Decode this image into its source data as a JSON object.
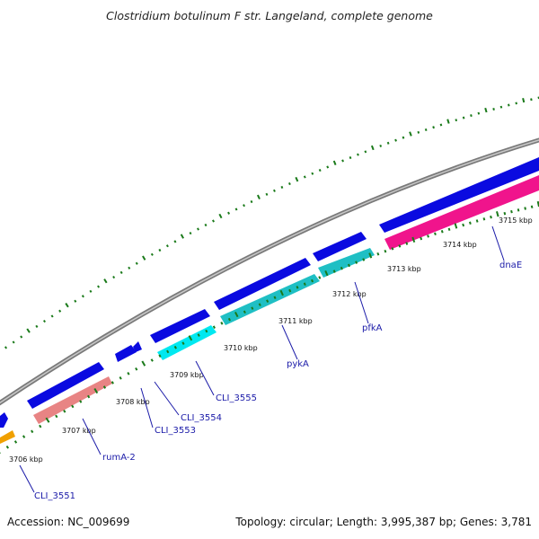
{
  "title": "Clostridium botulinum F str. Langeland, complete genome",
  "footer": {
    "accession": "Accession: NC_009699",
    "topology": "Topology: circular; Length: 3,995,387 bp; Genes: 3,781"
  },
  "colors": {
    "backbone": "#8c8c8c",
    "forward_gene": "#0a0ae0",
    "reverse_gene_cyan": "#1fbfc4",
    "reverse_gene_bright_cyan": "#00e8f0",
    "reverse_gene_pink": "#f0148c",
    "reverse_gene_salmon": "#e88484",
    "reverse_gene_orange": "#f0a000",
    "tick": "#1a7a1a",
    "label_line": "#1a1aa8"
  },
  "ticks": [
    "3706 kbp",
    "3707 kbp",
    "3708 kbp",
    "3709 kbp",
    "3710 kbp",
    "3711 kbp",
    "3712 kbp",
    "3713 kbp",
    "3714 kbp",
    "3715 kbp"
  ],
  "gene_labels": [
    "CLI_3551",
    "rumA-2",
    "CLI_3553",
    "CLI_3554",
    "CLI_3555",
    "pykA",
    "pfkA",
    "dnaE"
  ]
}
